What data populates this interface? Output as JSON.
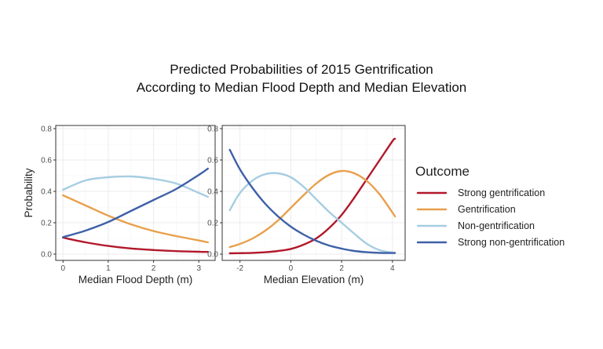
{
  "figure": {
    "title_line1": "Predicted Probabilities of 2015 Gentrification",
    "title_line2": "According to Median Flood Depth and Median Elevation"
  },
  "legend": {
    "title": "Outcome",
    "entries": [
      {
        "label": "Strong gentrification",
        "color": "#b2182b"
      },
      {
        "label": "Gentrification",
        "color": "#e8a04c"
      },
      {
        "label": "Non-gentrification",
        "color": "#a6cde2"
      },
      {
        "label": "Strong non-gentrification",
        "color": "#3e60a8"
      }
    ]
  },
  "chart_data": [
    {
      "type": "line",
      "xlabel": "Median Flood Depth (m)",
      "ylabel": "Probability",
      "xlim": [
        -0.16,
        3.36
      ],
      "ylim": [
        -0.04,
        0.82
      ],
      "xticks": [
        0,
        1,
        2,
        3
      ],
      "xtick_labels": [
        "0",
        "1",
        "2",
        "3"
      ],
      "yticks": [
        0.0,
        0.2,
        0.4,
        0.6,
        0.8
      ],
      "ytick_labels": [
        "0.0",
        "0.2",
        "0.4",
        "0.6",
        "0.8"
      ],
      "x": [
        0,
        0.5,
        1,
        1.5,
        2,
        2.5,
        3,
        3.2
      ],
      "series": [
        {
          "name": "Strong gentrification",
          "values": [
            0.105,
            0.075,
            0.052,
            0.036,
            0.026,
            0.019,
            0.015,
            0.014
          ]
        },
        {
          "name": "Gentrification",
          "values": [
            0.375,
            0.31,
            0.245,
            0.19,
            0.147,
            0.115,
            0.087,
            0.075
          ]
        },
        {
          "name": "Non-gentrification",
          "values": [
            0.41,
            0.47,
            0.49,
            0.495,
            0.48,
            0.45,
            0.39,
            0.365
          ]
        },
        {
          "name": "Strong non-gentrification",
          "values": [
            0.108,
            0.15,
            0.205,
            0.275,
            0.345,
            0.415,
            0.505,
            0.545
          ]
        }
      ]
    },
    {
      "type": "line",
      "xlabel": "Median Elevation (m)",
      "ylabel": "",
      "xlim": [
        -2.7,
        4.5
      ],
      "ylim": [
        -0.04,
        0.82
      ],
      "xticks": [
        -2,
        0,
        2,
        4
      ],
      "xtick_labels": [
        "-2",
        "0",
        "2",
        "4"
      ],
      "yticks": [
        0.0,
        0.2,
        0.4,
        0.6,
        0.8
      ],
      "ytick_labels": [
        "0.0",
        "0.2",
        "0.4",
        "0.6",
        "0.8"
      ],
      "x": [
        -2.4,
        -2,
        -1.5,
        -1,
        -0.5,
        0,
        0.5,
        1,
        1.5,
        2,
        2.5,
        3,
        3.5,
        4,
        4.1
      ],
      "series": [
        {
          "name": "Strong gentrification",
          "values": [
            0.005,
            0.006,
            0.008,
            0.012,
            0.02,
            0.033,
            0.06,
            0.1,
            0.165,
            0.25,
            0.36,
            0.48,
            0.6,
            0.72,
            0.735
          ]
        },
        {
          "name": "Gentrification",
          "values": [
            0.045,
            0.065,
            0.1,
            0.15,
            0.215,
            0.295,
            0.375,
            0.45,
            0.505,
            0.53,
            0.515,
            0.465,
            0.38,
            0.265,
            0.24
          ]
        },
        {
          "name": "Non-gentrification",
          "values": [
            0.28,
            0.39,
            0.47,
            0.51,
            0.515,
            0.49,
            0.43,
            0.35,
            0.27,
            0.2,
            0.13,
            0.065,
            0.025,
            0.01,
            0.008
          ]
        },
        {
          "name": "Strong non-gentrification",
          "values": [
            0.665,
            0.54,
            0.42,
            0.32,
            0.24,
            0.175,
            0.125,
            0.085,
            0.055,
            0.035,
            0.02,
            0.012,
            0.008,
            0.007,
            0.007
          ]
        }
      ]
    }
  ]
}
